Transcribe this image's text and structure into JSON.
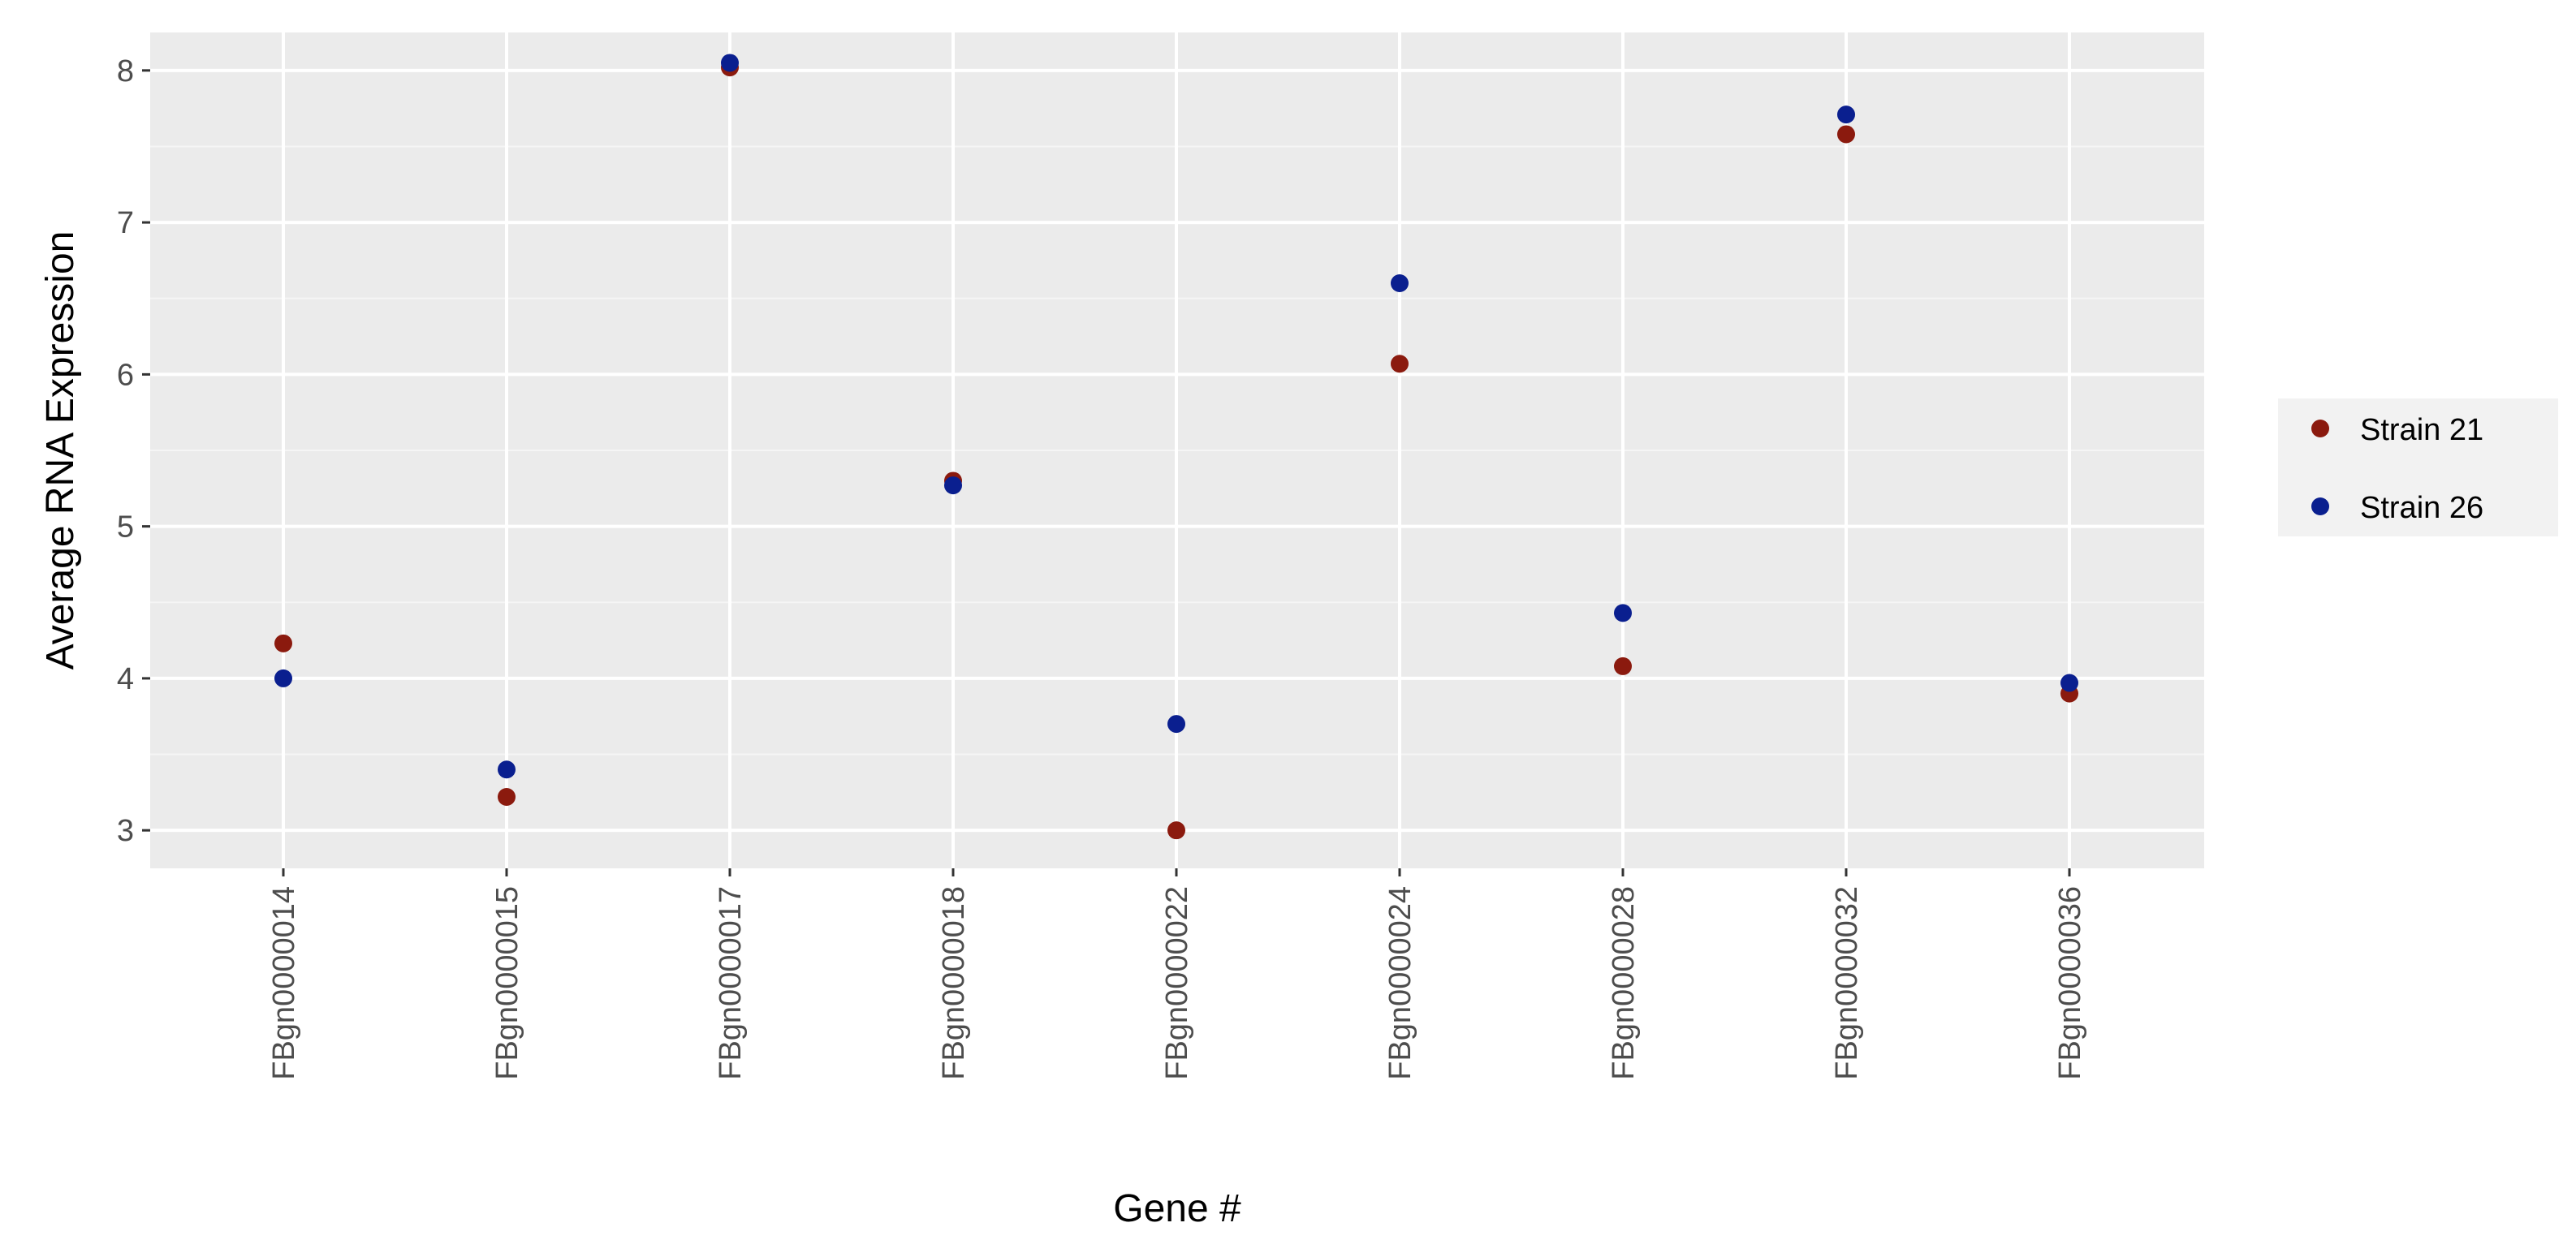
{
  "colors": {
    "panel_background": "#ebebeb",
    "grid_major": "#ffffff",
    "grid_minor": "#f5f5f5",
    "legend_background": "#f2f2f2",
    "strain_21": "#8b1a0e",
    "strain_26": "#0a1f8f"
  },
  "chart_data": {
    "type": "scatter",
    "title": "",
    "xlabel": "Gene #",
    "ylabel": "Average RNA Expression",
    "categories": [
      "FBgn0000014",
      "FBgn0000015",
      "FBgn0000017",
      "FBgn0000018",
      "FBgn0000022",
      "FBgn0000024",
      "FBgn0000028",
      "FBgn0000032",
      "FBgn0000036"
    ],
    "y_ticks": [
      "3",
      "4",
      "5",
      "6",
      "7",
      "8"
    ],
    "ylim": [
      2.75,
      8.25
    ],
    "grid": true,
    "legend_position": "right",
    "series": [
      {
        "name": "Strain 21",
        "color": "#8b1a0e",
        "values": [
          4.23,
          3.22,
          8.02,
          5.3,
          3.0,
          6.07,
          4.08,
          7.58,
          3.9
        ]
      },
      {
        "name": "Strain 26",
        "color": "#0a1f8f",
        "values": [
          4.0,
          3.4,
          8.05,
          5.27,
          3.7,
          6.6,
          4.43,
          7.71,
          3.97
        ]
      }
    ]
  }
}
